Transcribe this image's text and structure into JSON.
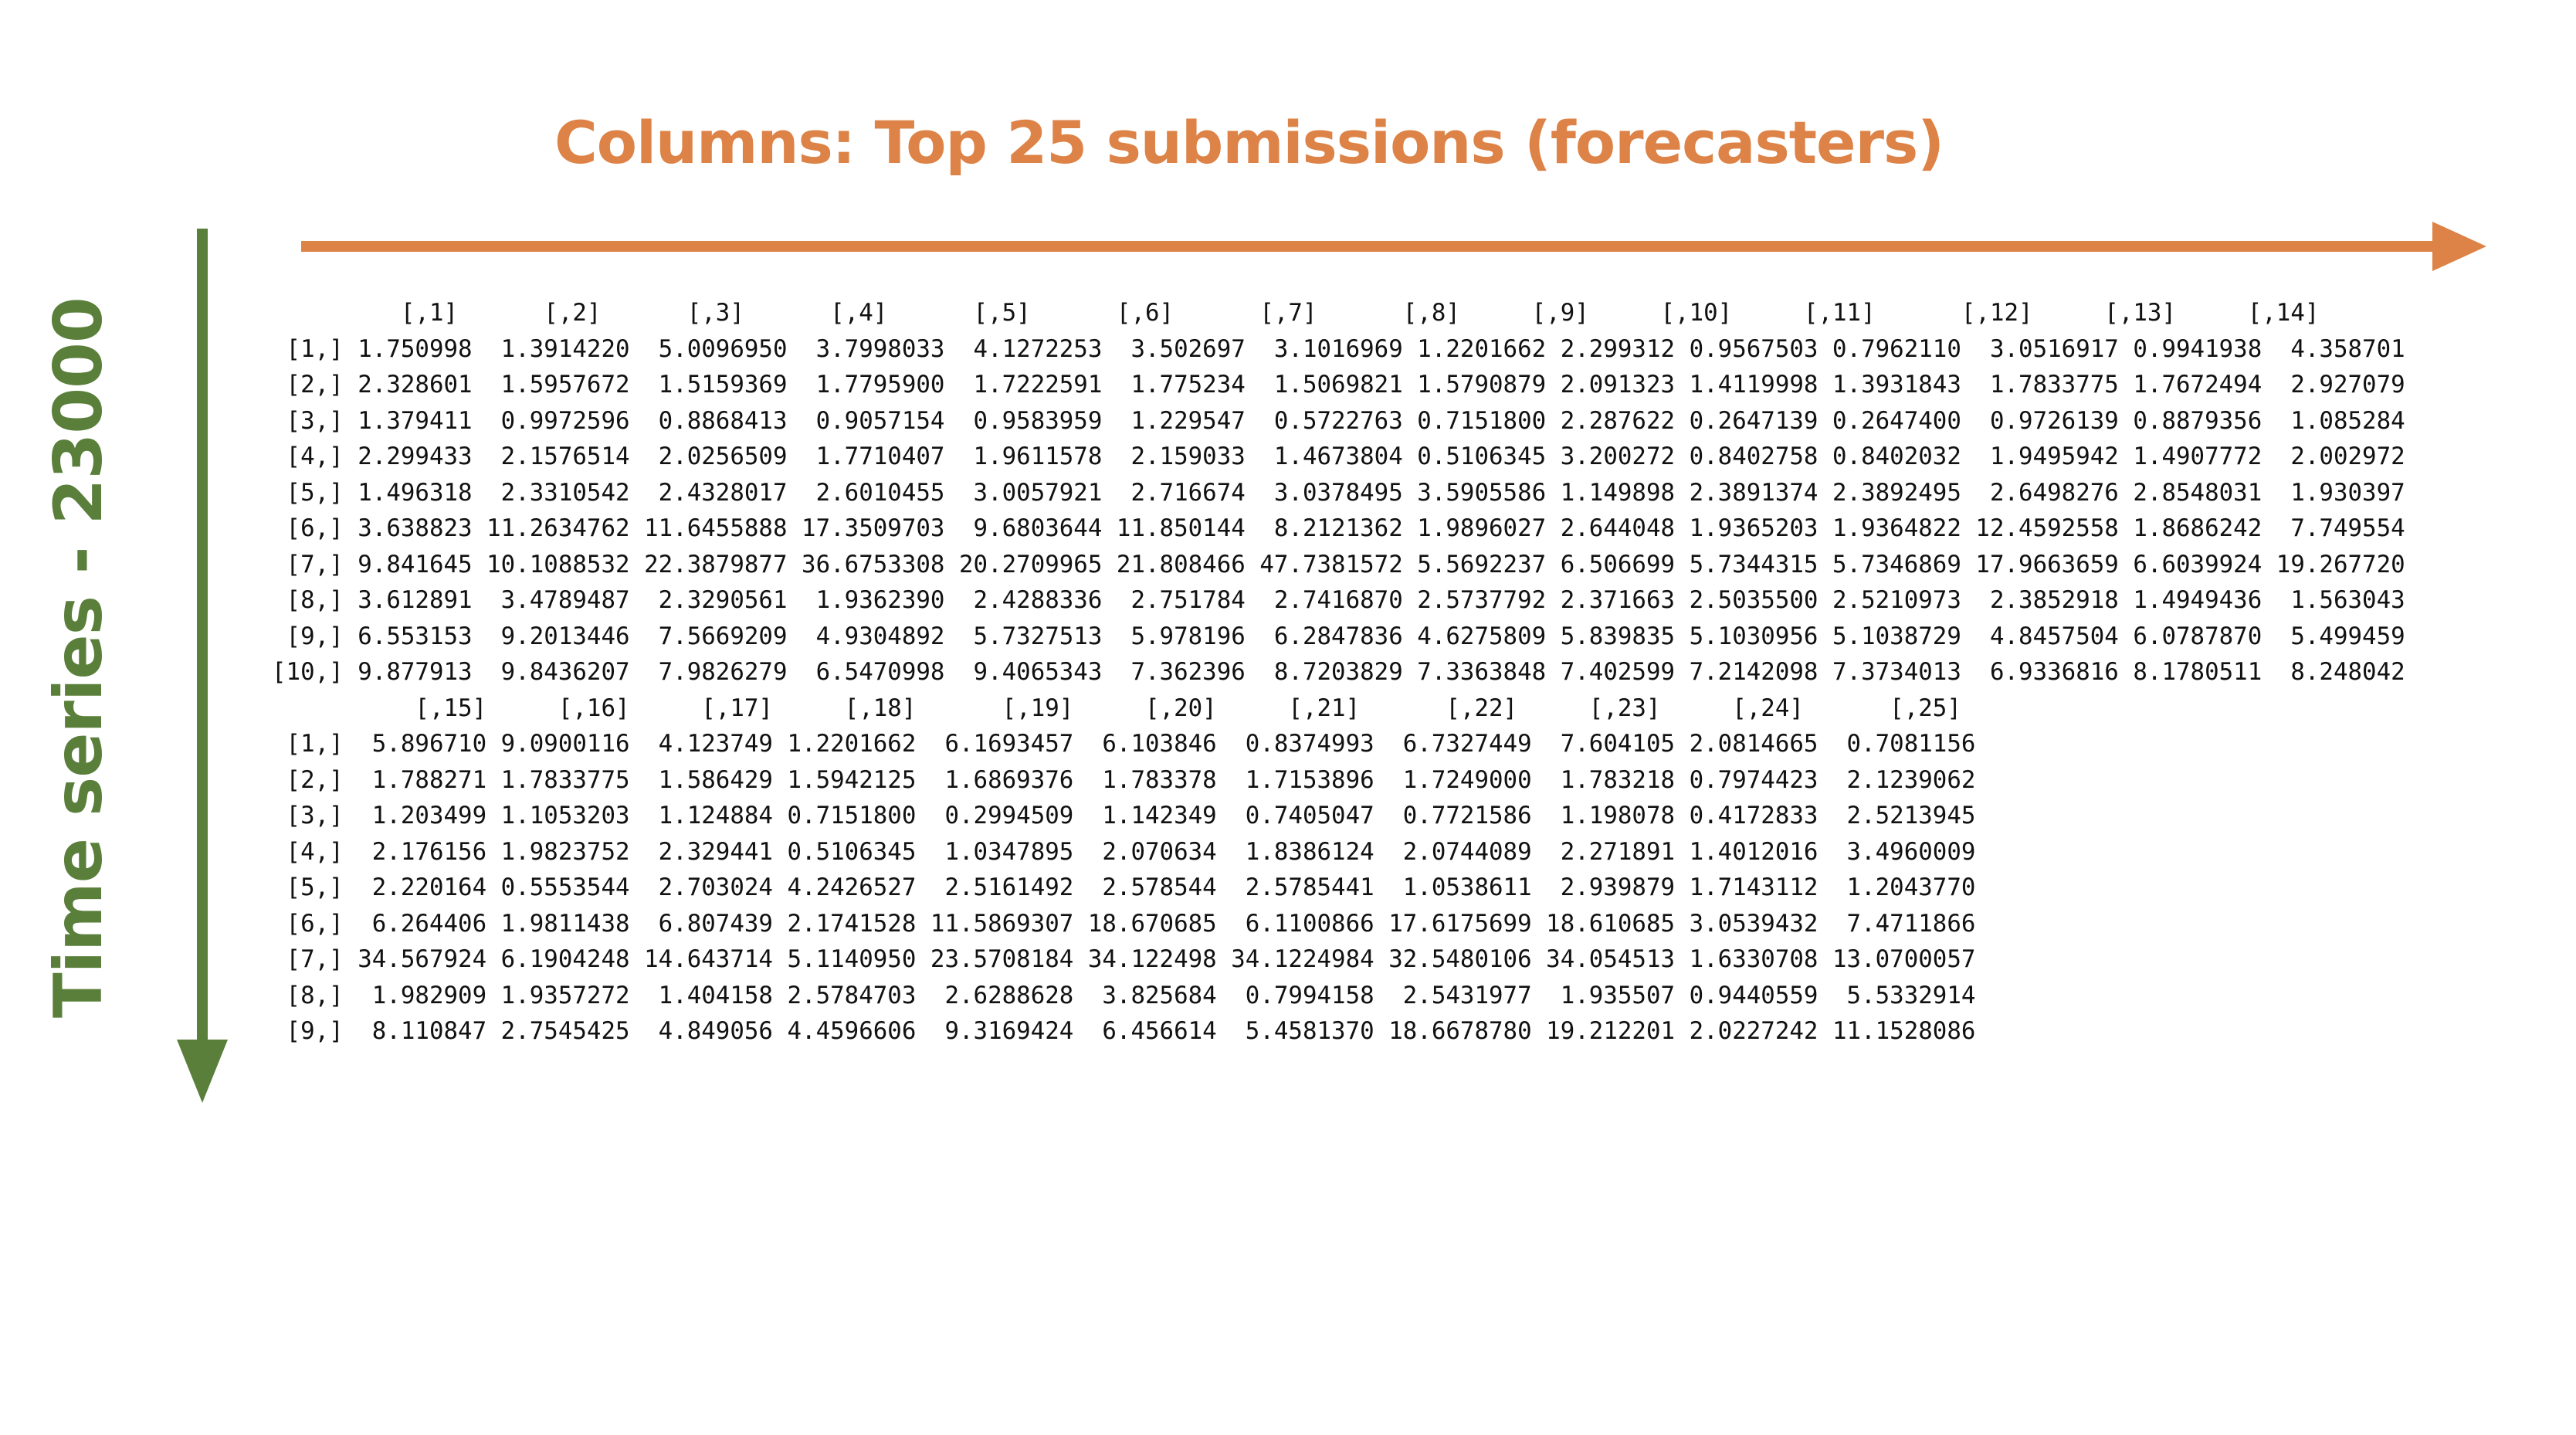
{
  "slide": {
    "columns_title": "Columns: Top 25 submissions (forecasters)",
    "rows_title": "Time series - 23000",
    "colors": {
      "columns_title": "#dd8347",
      "rows_title": "#5a7f3b",
      "horizontal_arrow": "#dd8347",
      "vertical_arrow": "#5a7f3b"
    }
  },
  "console_output": {
    "lines": [
      "         [,1]      [,2]      [,3]      [,4]      [,5]      [,6]      [,7]      [,8]     [,9]     [,10]     [,11]      [,12]     [,13]     [,14]",
      " [1,] 1.750998  1.3914220  5.0096950  3.7998033  4.1272253  3.502697  3.1016969 1.2201662 2.299312 0.9567503 0.7962110  3.0516917 0.9941938  4.358701",
      " [2,] 2.328601  1.5957672  1.5159369  1.7795900  1.7222591  1.775234  1.5069821 1.5790879 2.091323 1.4119998 1.3931843  1.7833775 1.7672494  2.927079",
      " [3,] 1.379411  0.9972596  0.8868413  0.9057154  0.9583959  1.229547  0.5722763 0.7151800 2.287622 0.2647139 0.2647400  0.9726139 0.8879356  1.085284",
      " [4,] 2.299433  2.1576514  2.0256509  1.7710407  1.9611578  2.159033  1.4673804 0.5106345 3.200272 0.8402758 0.8402032  1.9495942 1.4907772  2.002972",
      " [5,] 1.496318  2.3310542  2.4328017  2.6010455  3.0057921  2.716674  3.0378495 3.5905586 1.149898 2.3891374 2.3892495  2.6498276 2.8548031  1.930397",
      " [6,] 3.638823 11.2634762 11.6455888 17.3509703  9.6803644 11.850144  8.2121362 1.9896027 2.644048 1.9365203 1.9364822 12.4592558 1.8686242  7.749554",
      " [7,] 9.841645 10.1088532 22.3879877 36.6753308 20.2709965 21.808466 47.7381572 5.5692237 6.506699 5.7344315 5.7346869 17.9663659 6.6039924 19.267720",
      " [8,] 3.612891  3.4789487  2.3290561  1.9362390  2.4288336  2.751784  2.7416870 2.5737792 2.371663 2.5035500 2.5210973  2.3852918 1.4949436  1.563043",
      " [9,] 6.553153  9.2013446  7.5669209  4.9304892  5.7327513  5.978196  6.2847836 4.6275809 5.839835 5.1030956 5.1038729  4.8457504 6.0787870  5.499459",
      "[10,] 9.877913  9.8436207  7.9826279  6.5470998  9.4065343  7.362396  8.7203829 7.3363848 7.402599 7.2142098 7.3734013  6.9336816 8.1780511  8.248042",
      "          [,15]     [,16]     [,17]     [,18]      [,19]     [,20]     [,21]      [,22]     [,23]     [,24]      [,25]",
      " [1,]  5.896710 9.0900116  4.123749 1.2201662  6.1693457  6.103846  0.8374993  6.7327449  7.604105 2.0814665  0.7081156",
      " [2,]  1.788271 1.7833775  1.586429 1.5942125  1.6869376  1.783378  1.7153896  1.7249000  1.783218 0.7974423  2.1239062",
      " [3,]  1.203499 1.1053203  1.124884 0.7151800  0.2994509  1.142349  0.7405047  0.7721586  1.198078 0.4172833  2.5213945",
      " [4,]  2.176156 1.9823752  2.329441 0.5106345  1.0347895  2.070634  1.8386124  2.0744089  2.271891 1.4012016  3.4960009",
      " [5,]  2.220164 0.5553544  2.703024 4.2426527  2.5161492  2.578544  2.5785441  1.0538611  2.939879 1.7143112  1.2043770",
      " [6,]  6.264406 1.9811438  6.807439 2.1741528 11.5869307 18.670685  6.1100866 17.6175699 18.610685 3.0539432  7.4711866",
      " [7,] 34.567924 6.1904248 14.643714 5.1140950 23.5708184 34.122498 34.1224984 32.5480106 34.054513 1.6330708 13.0700057",
      " [8,]  1.982909 1.9357272  1.404158 2.5784703  2.6288628  3.825684  0.7994158  2.5431977  1.935507 0.9440559  5.5332914",
      " [9,]  8.110847 2.7545425  4.849056 4.4596606  9.3169424  6.456614  5.4581370 18.6678780 19.212201 2.0227242 11.1528086"
    ]
  }
}
